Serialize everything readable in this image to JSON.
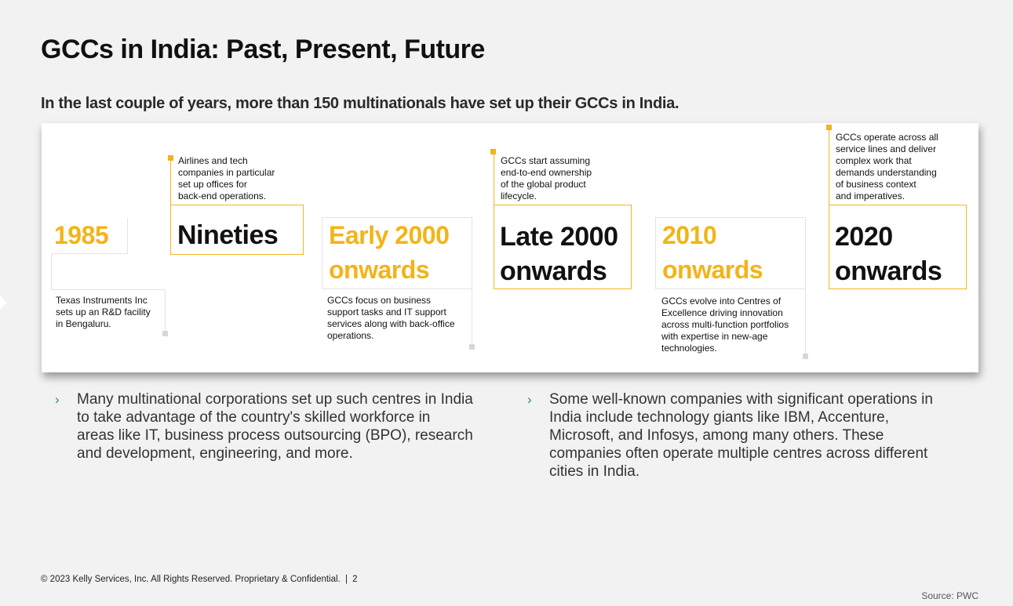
{
  "slide": {
    "title": "GCCs in India: Past, Present, Future",
    "subtitle": "In the last couple of years, more than 150 multinationals have set up their GCCs in India."
  },
  "timeline": [
    {
      "period": "1985",
      "note": [
        "Texas Instruments Inc",
        "sets up an R&D facility",
        "in Bengaluru."
      ]
    },
    {
      "period": "Nineties",
      "note": [
        "Airlines and tech",
        "companies in particular",
        "set up offices for",
        "back-end operations."
      ]
    },
    {
      "period_line1": "Early 2000",
      "period_line2": "onwards",
      "note": [
        "GCCs focus on business",
        "support tasks and IT support",
        "services along with back-office",
        "operations."
      ]
    },
    {
      "period_line1": "Late 2000",
      "period_line2": "onwards",
      "note": [
        "GCCs start assuming",
        "end-to-end ownership",
        "of the global product",
        "lifecycle."
      ]
    },
    {
      "period_line1": "2010",
      "period_line2": "onwards",
      "note": [
        "GCCs evolve into Centres of",
        "Excellence driving innovation",
        "across multi-function portfolios",
        "with expertise in new-age",
        "technologies."
      ]
    },
    {
      "period_line1": "2020",
      "period_line2": "onwards",
      "note": [
        "GCCs operate across all",
        "service lines and deliver",
        "complex work that",
        "demands understanding",
        "of business context",
        "and imperatives."
      ]
    }
  ],
  "bullets": {
    "left": [
      "Many multinational corporations set up such centres in India",
      "to take advantage of the country's skilled workforce in",
      "areas like IT, business process outsourcing (BPO), research",
      "and development, engineering, and more."
    ],
    "right": [
      "Some well-known companies with significant operations in",
      "India include technology giants like IBM, Accenture,",
      "Microsoft, and Infosys, among many others. These",
      "companies often operate multiple centres across different",
      "cities in India."
    ],
    "marker": "›"
  },
  "footer": {
    "copyright": "© 2023 Kelly Services, Inc. All Rights Reserved. Proprietary & Confidential.",
    "separator": "|",
    "page_number": "2",
    "source": "Source: PWC"
  },
  "colors": {
    "accent_yellow": "#f2b417",
    "bullet_green": "#1f9a3c",
    "background": "#f2f2f2"
  }
}
